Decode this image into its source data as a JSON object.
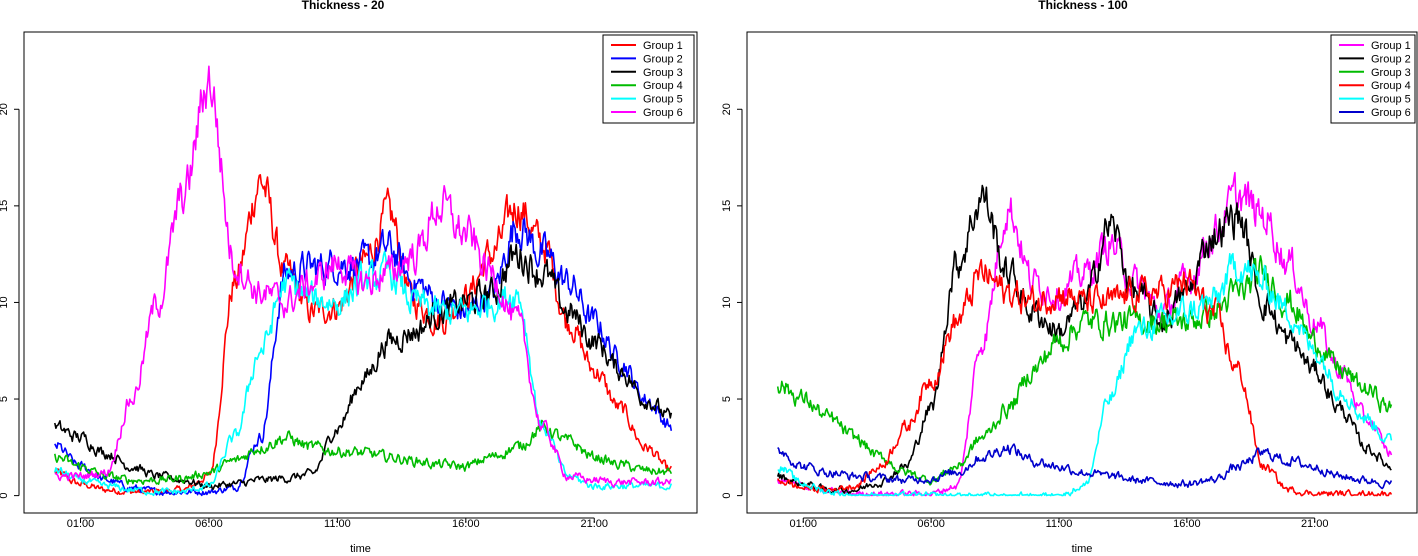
{
  "chart_data": [
    {
      "type": "line",
      "title": "Thickness -  20",
      "xlabel": "time",
      "ylabel": "",
      "xticks": [
        "01:00",
        "06:00",
        "11:00",
        "16:00",
        "21:00"
      ],
      "xtick_hours": [
        1,
        6,
        11,
        16,
        21
      ],
      "yticks": [
        0,
        5,
        10,
        15,
        20
      ],
      "xlim": [
        -1.2,
        25.0
      ],
      "ylim": [
        -0.9,
        24.0
      ],
      "x_anchor_hours": [
        0,
        1,
        2,
        3,
        4,
        5,
        6,
        7,
        8,
        9,
        10,
        11,
        12,
        13,
        14,
        15,
        16,
        17,
        18,
        19,
        20,
        21,
        22,
        23,
        24
      ],
      "legend_position": "top-right",
      "series": [
        {
          "name": "Group 1",
          "color": "#ff0000",
          "values": [
            1.2,
            0.6,
            0.3,
            0.2,
            0.2,
            0.3,
            1.0,
            11.0,
            16.3,
            11.5,
            9.5,
            9.8,
            12.0,
            14.5,
            10.0,
            9.0,
            10.3,
            12.5,
            15.0,
            13.0,
            9.0,
            6.5,
            4.5,
            2.5,
            1.3
          ]
        },
        {
          "name": "Group 2",
          "color": "#0000ff",
          "values": [
            2.6,
            1.5,
            0.8,
            0.4,
            0.2,
            0.2,
            0.2,
            0.4,
            3.0,
            11.5,
            11.8,
            12.0,
            12.0,
            12.8,
            11.0,
            10.0,
            9.5,
            10.5,
            14.0,
            12.5,
            11.0,
            9.0,
            7.0,
            5.0,
            3.6
          ]
        },
        {
          "name": "Group 3",
          "color": "#000000",
          "values": [
            3.5,
            3.0,
            2.2,
            1.5,
            1.0,
            0.8,
            0.5,
            0.6,
            0.8,
            0.9,
            1.1,
            3.5,
            6.0,
            8.0,
            8.5,
            9.5,
            10.0,
            10.5,
            12.5,
            11.5,
            9.5,
            8.0,
            6.5,
            5.0,
            4.0
          ]
        },
        {
          "name": "Group 4",
          "color": "#00bb00",
          "values": [
            2.0,
            1.5,
            1.0,
            0.8,
            0.8,
            0.9,
            1.2,
            1.8,
            2.5,
            3.0,
            2.5,
            2.3,
            2.2,
            2.0,
            1.8,
            1.6,
            1.5,
            2.0,
            2.5,
            3.5,
            2.8,
            2.0,
            1.6,
            1.3,
            1.2
          ]
        },
        {
          "name": "Group 5",
          "color": "#00ffff",
          "values": [
            1.3,
            0.8,
            0.5,
            0.3,
            0.2,
            0.2,
            0.5,
            3.0,
            7.5,
            11.0,
            10.2,
            10.0,
            11.0,
            11.5,
            10.0,
            9.5,
            9.5,
            10.0,
            10.5,
            3.5,
            1.0,
            0.5,
            0.5,
            0.5,
            0.5
          ]
        },
        {
          "name": "Group 6",
          "color": "#ff00ff",
          "values": [
            1.0,
            1.0,
            1.2,
            5.0,
            10.0,
            15.5,
            21.5,
            12.0,
            10.5,
            10.0,
            11.0,
            12.0,
            11.0,
            11.5,
            12.5,
            15.0,
            13.5,
            11.5,
            9.0,
            3.5,
            1.0,
            0.8,
            0.7,
            0.7,
            0.7
          ]
        }
      ]
    },
    {
      "type": "line",
      "title": "Thickness -  100",
      "xlabel": "time",
      "ylabel": "",
      "xticks": [
        "01:00",
        "06:00",
        "11:00",
        "16:00",
        "21:00"
      ],
      "xtick_hours": [
        1,
        6,
        11,
        16,
        21
      ],
      "yticks": [
        0,
        5,
        10,
        15,
        20
      ],
      "xlim": [
        -1.2,
        25.0
      ],
      "ylim": [
        -0.9,
        24.0
      ],
      "x_anchor_hours": [
        0,
        1,
        2,
        3,
        4,
        5,
        6,
        7,
        8,
        9,
        10,
        11,
        12,
        13,
        14,
        15,
        16,
        17,
        18,
        19,
        20,
        21,
        22,
        23,
        24
      ],
      "legend_position": "top-right",
      "series": [
        {
          "name": "Group 1",
          "color": "#ff00ff",
          "values": [
            0.8,
            0.5,
            0.2,
            0.1,
            0.1,
            0.1,
            0.1,
            0.5,
            8.0,
            15.0,
            11.0,
            10.5,
            11.5,
            13.0,
            11.0,
            9.5,
            11.0,
            13.5,
            15.5,
            14.5,
            12.0,
            9.0,
            6.5,
            4.0,
            2.2
          ]
        },
        {
          "name": "Group 2",
          "color": "#000000",
          "values": [
            1.0,
            0.6,
            0.3,
            0.3,
            0.7,
            1.5,
            4.5,
            12.0,
            15.5,
            11.5,
            9.5,
            8.5,
            10.0,
            14.0,
            10.5,
            9.0,
            10.5,
            13.5,
            14.5,
            10.0,
            8.0,
            6.5,
            4.5,
            2.5,
            1.5
          ]
        },
        {
          "name": "Group 3",
          "color": "#00bb00",
          "values": [
            5.8,
            5.0,
            4.0,
            3.0,
            2.0,
            1.2,
            0.8,
            1.5,
            3.0,
            4.5,
            6.5,
            8.0,
            9.0,
            9.0,
            9.0,
            9.0,
            9.0,
            9.5,
            10.5,
            11.5,
            10.0,
            8.0,
            6.5,
            5.5,
            4.5
          ]
        },
        {
          "name": "Group 4",
          "color": "#ff0000",
          "values": [
            0.8,
            0.4,
            0.3,
            0.5,
            1.5,
            3.5,
            6.0,
            9.0,
            11.5,
            10.5,
            10.0,
            10.5,
            10.0,
            10.0,
            10.5,
            10.5,
            11.0,
            9.5,
            6.5,
            1.5,
            0.3,
            0.1,
            0.1,
            0.1,
            0.1
          ]
        },
        {
          "name": "Group 5",
          "color": "#00ffff",
          "values": [
            1.5,
            0.6,
            0.2,
            0.0,
            0.0,
            0.0,
            0.0,
            0.0,
            0.0,
            0.0,
            0.0,
            0.0,
            0.5,
            5.0,
            8.5,
            9.0,
            9.5,
            10.0,
            12.0,
            11.0,
            9.5,
            7.5,
            5.5,
            4.0,
            2.8
          ]
        },
        {
          "name": "Group 6",
          "color": "#0000cc",
          "values": [
            2.4,
            1.5,
            1.2,
            1.0,
            0.9,
            0.8,
            0.9,
            1.2,
            2.0,
            2.5,
            1.8,
            1.5,
            1.2,
            1.0,
            0.8,
            0.7,
            0.6,
            0.8,
            1.5,
            2.2,
            1.8,
            1.5,
            1.0,
            0.8,
            0.6
          ]
        }
      ]
    }
  ]
}
